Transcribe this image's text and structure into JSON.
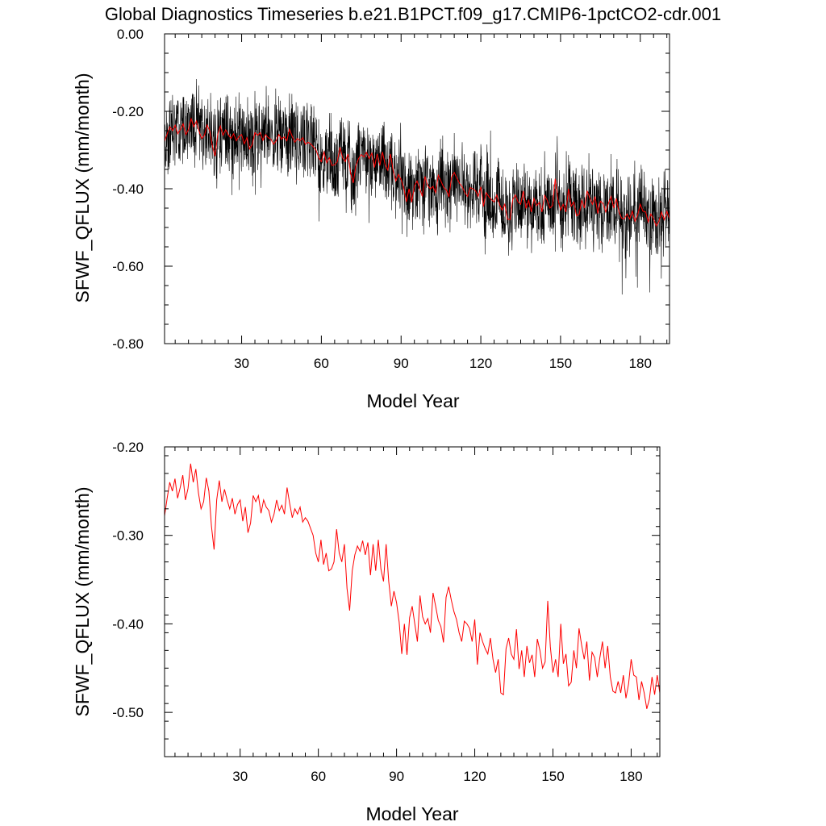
{
  "figure": {
    "title": "Global Diagnostics Timeseries b.e21.B1PCT.f09_g17.CMIP6-1pctCO2-cdr.001"
  },
  "colors": {
    "monthly_line": "#000000",
    "annual_line": "#ff0000",
    "frame": "#000000"
  },
  "chart_data": [
    {
      "type": "line",
      "title": "",
      "xlabel": "Model Year",
      "ylabel": "SFWF_QFLUX (mm/month)",
      "xlim": [
        1,
        191
      ],
      "ylim": [
        -0.8,
        0.0
      ],
      "xticks": [
        30,
        60,
        90,
        120,
        150,
        180
      ],
      "xticklabels": [
        "30",
        "60",
        "90",
        "120",
        "150",
        "180"
      ],
      "yticks": [
        0.0,
        -0.2,
        -0.4,
        -0.6,
        -0.8
      ],
      "yticklabels": [
        "0.00",
        "-0.20",
        "-0.40",
        "-0.60",
        "-0.80"
      ],
      "grid": false,
      "legend": "none",
      "series": [
        {
          "kind": "monthly",
          "color": "#000000",
          "x_start": 1,
          "x_step": 0.0833333,
          "amplitude_envelope": 0.09,
          "values_note_only_annual_trend_readable": "",
          "trend_anchor_years": [
            1,
            20,
            50,
            70,
            90,
            120,
            150,
            191
          ],
          "trend_anchor_values": [
            -0.26,
            -0.27,
            -0.28,
            -0.35,
            -0.39,
            -0.42,
            -0.44,
            -0.48
          ]
        },
        {
          "kind": "annual",
          "color": "#ff0000",
          "x_start": 1,
          "x_step": 1,
          "values": "annual"
        }
      ]
    },
    {
      "type": "line",
      "title": "",
      "xlabel": "Model Year",
      "ylabel": "SFWF_QFLUX (mm/month)",
      "xlim": [
        1,
        191
      ],
      "ylim": [
        -0.55,
        -0.2
      ],
      "xticks": [
        30,
        60,
        90,
        120,
        150,
        180
      ],
      "xticklabels": [
        "30",
        "60",
        "90",
        "120",
        "150",
        "180"
      ],
      "yticks": [
        -0.2,
        -0.3,
        -0.4,
        -0.5
      ],
      "yticklabels": [
        "-0.20",
        "-0.30",
        "-0.40",
        "-0.50"
      ],
      "grid": false,
      "legend": "none",
      "series": [
        {
          "kind": "annual",
          "color": "#ff0000",
          "x_start": 1,
          "x_step": 1,
          "values": [
            -0.278,
            -0.258,
            -0.24,
            -0.25,
            -0.236,
            -0.258,
            -0.246,
            -0.232,
            -0.26,
            -0.247,
            -0.219,
            -0.24,
            -0.225,
            -0.252,
            -0.27,
            -0.262,
            -0.235,
            -0.25,
            -0.29,
            -0.316,
            -0.26,
            -0.238,
            -0.262,
            -0.248,
            -0.26,
            -0.27,
            -0.258,
            -0.276,
            -0.265,
            -0.26,
            -0.284,
            -0.268,
            -0.297,
            -0.286,
            -0.255,
            -0.262,
            -0.255,
            -0.275,
            -0.26,
            -0.268,
            -0.272,
            -0.285,
            -0.276,
            -0.26,
            -0.272,
            -0.266,
            -0.276,
            -0.246,
            -0.264,
            -0.28,
            -0.27,
            -0.276,
            -0.268,
            -0.285,
            -0.28,
            -0.284,
            -0.292,
            -0.3,
            -0.32,
            -0.33,
            -0.305,
            -0.333,
            -0.32,
            -0.34,
            -0.338,
            -0.33,
            -0.293,
            -0.32,
            -0.33,
            -0.31,
            -0.36,
            -0.385,
            -0.34,
            -0.322,
            -0.312,
            -0.318,
            -0.306,
            -0.322,
            -0.308,
            -0.345,
            -0.31,
            -0.34,
            -0.305,
            -0.338,
            -0.352,
            -0.31,
            -0.352,
            -0.38,
            -0.363,
            -0.376,
            -0.398,
            -0.434,
            -0.4,
            -0.435,
            -0.393,
            -0.38,
            -0.4,
            -0.42,
            -0.368,
            -0.392,
            -0.4,
            -0.394,
            -0.41,
            -0.365,
            -0.38,
            -0.396,
            -0.403,
            -0.421,
            -0.37,
            -0.358,
            -0.373,
            -0.386,
            -0.395,
            -0.41,
            -0.42,
            -0.397,
            -0.4,
            -0.405,
            -0.42,
            -0.395,
            -0.446,
            -0.41,
            -0.42,
            -0.428,
            -0.434,
            -0.416,
            -0.44,
            -0.455,
            -0.44,
            -0.478,
            -0.48,
            -0.428,
            -0.416,
            -0.434,
            -0.44,
            -0.406,
            -0.451,
            -0.43,
            -0.46,
            -0.425,
            -0.444,
            -0.435,
            -0.46,
            -0.417,
            -0.43,
            -0.45,
            -0.443,
            -0.374,
            -0.426,
            -0.455,
            -0.44,
            -0.46,
            -0.4,
            -0.445,
            -0.434,
            -0.47,
            -0.466,
            -0.43,
            -0.45,
            -0.405,
            -0.424,
            -0.44,
            -0.42,
            -0.464,
            -0.432,
            -0.438,
            -0.46,
            -0.438,
            -0.42,
            -0.45,
            -0.425,
            -0.46,
            -0.476,
            -0.478,
            -0.465,
            -0.478,
            -0.458,
            -0.484,
            -0.468,
            -0.44,
            -0.458,
            -0.46,
            -0.486,
            -0.465,
            -0.478,
            -0.496,
            -0.485,
            -0.46,
            -0.48,
            -0.458,
            -0.478
          ]
        }
      ]
    }
  ]
}
